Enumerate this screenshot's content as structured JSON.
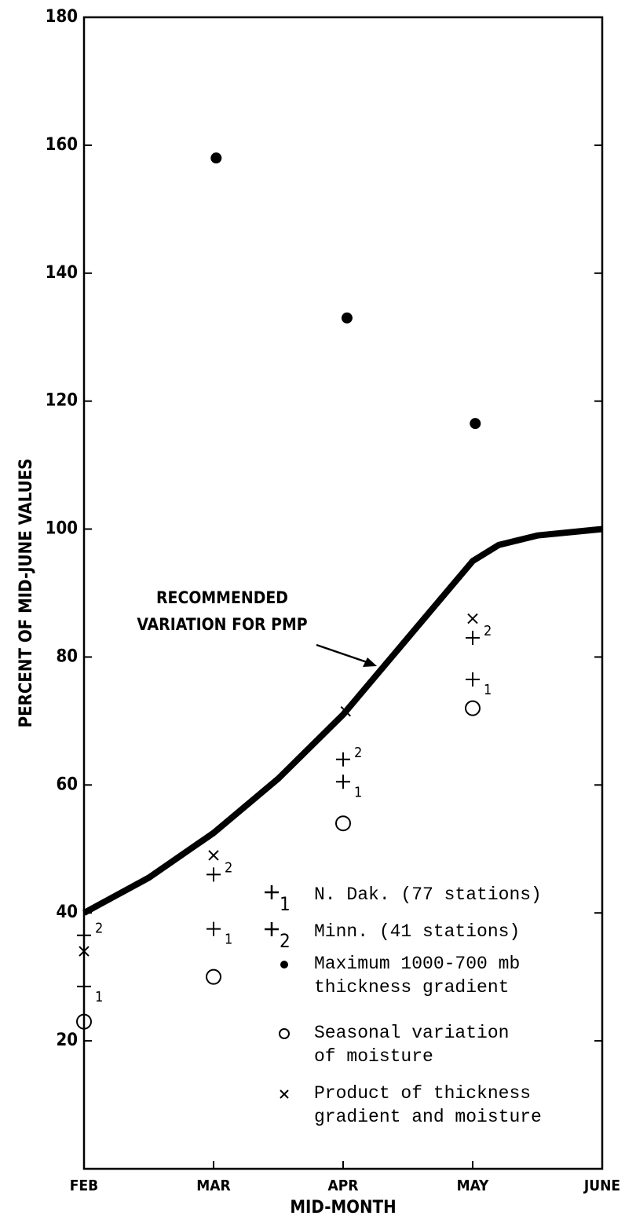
{
  "chart_data": {
    "type": "scatter",
    "y_label": "PERCENT OF MID-JUNE VALUES",
    "x_label": "MID-MONTH",
    "xlim": [
      0,
      4
    ],
    "xticks": [
      {
        "value": 0,
        "label": "FEB"
      },
      {
        "value": 1,
        "label": "MAR"
      },
      {
        "value": 2,
        "label": "APR"
      },
      {
        "value": 3,
        "label": "MAY"
      },
      {
        "value": 4,
        "label": "JUNE"
      }
    ],
    "ylim": [
      0,
      180
    ],
    "yticks": [
      20,
      40,
      60,
      80,
      100,
      120,
      140,
      160,
      180
    ],
    "annotation": [
      "RECOMMENDED",
      "VARIATION FOR PMP"
    ],
    "curve": {
      "x": [
        0,
        0.5,
        1,
        1.5,
        2,
        2.5,
        3,
        3.2,
        3.5,
        4
      ],
      "values": [
        40,
        45.5,
        52.5,
        61,
        71,
        83,
        95,
        97.5,
        99,
        100
      ],
      "color": "#000000"
    },
    "series": [
      {
        "name": "N. Dak. (77 stations)",
        "marker": "plus",
        "marker_label": "1",
        "color": "#000000",
        "x": [
          0,
          1,
          2,
          3
        ],
        "values": [
          28.5,
          37.5,
          60.5,
          76.5
        ]
      },
      {
        "name": "Minn. (41 stations)",
        "marker": "plus",
        "marker_label": "2",
        "color": "#000000",
        "x": [
          0,
          1,
          2,
          3
        ],
        "values": [
          36.5,
          46,
          64,
          83
        ]
      },
      {
        "name": "Maximum 1000-700 mb\nthickness gradient",
        "marker": "dot",
        "color": "#000000",
        "x": [
          1.02,
          2.03,
          3.02
        ],
        "values": [
          158,
          133,
          116.5
        ]
      },
      {
        "name": "Seasonal variation\nof moisture",
        "marker": "circle",
        "color": "#000000",
        "x": [
          0,
          1,
          2,
          3
        ],
        "values": [
          23,
          30,
          54,
          72
        ]
      },
      {
        "name": "Product of thickness\ngradient and moisture",
        "marker": "x",
        "color": "#000000",
        "x": [
          0,
          1,
          2.02,
          3
        ],
        "values": [
          34,
          49,
          71.5,
          86
        ]
      }
    ]
  }
}
